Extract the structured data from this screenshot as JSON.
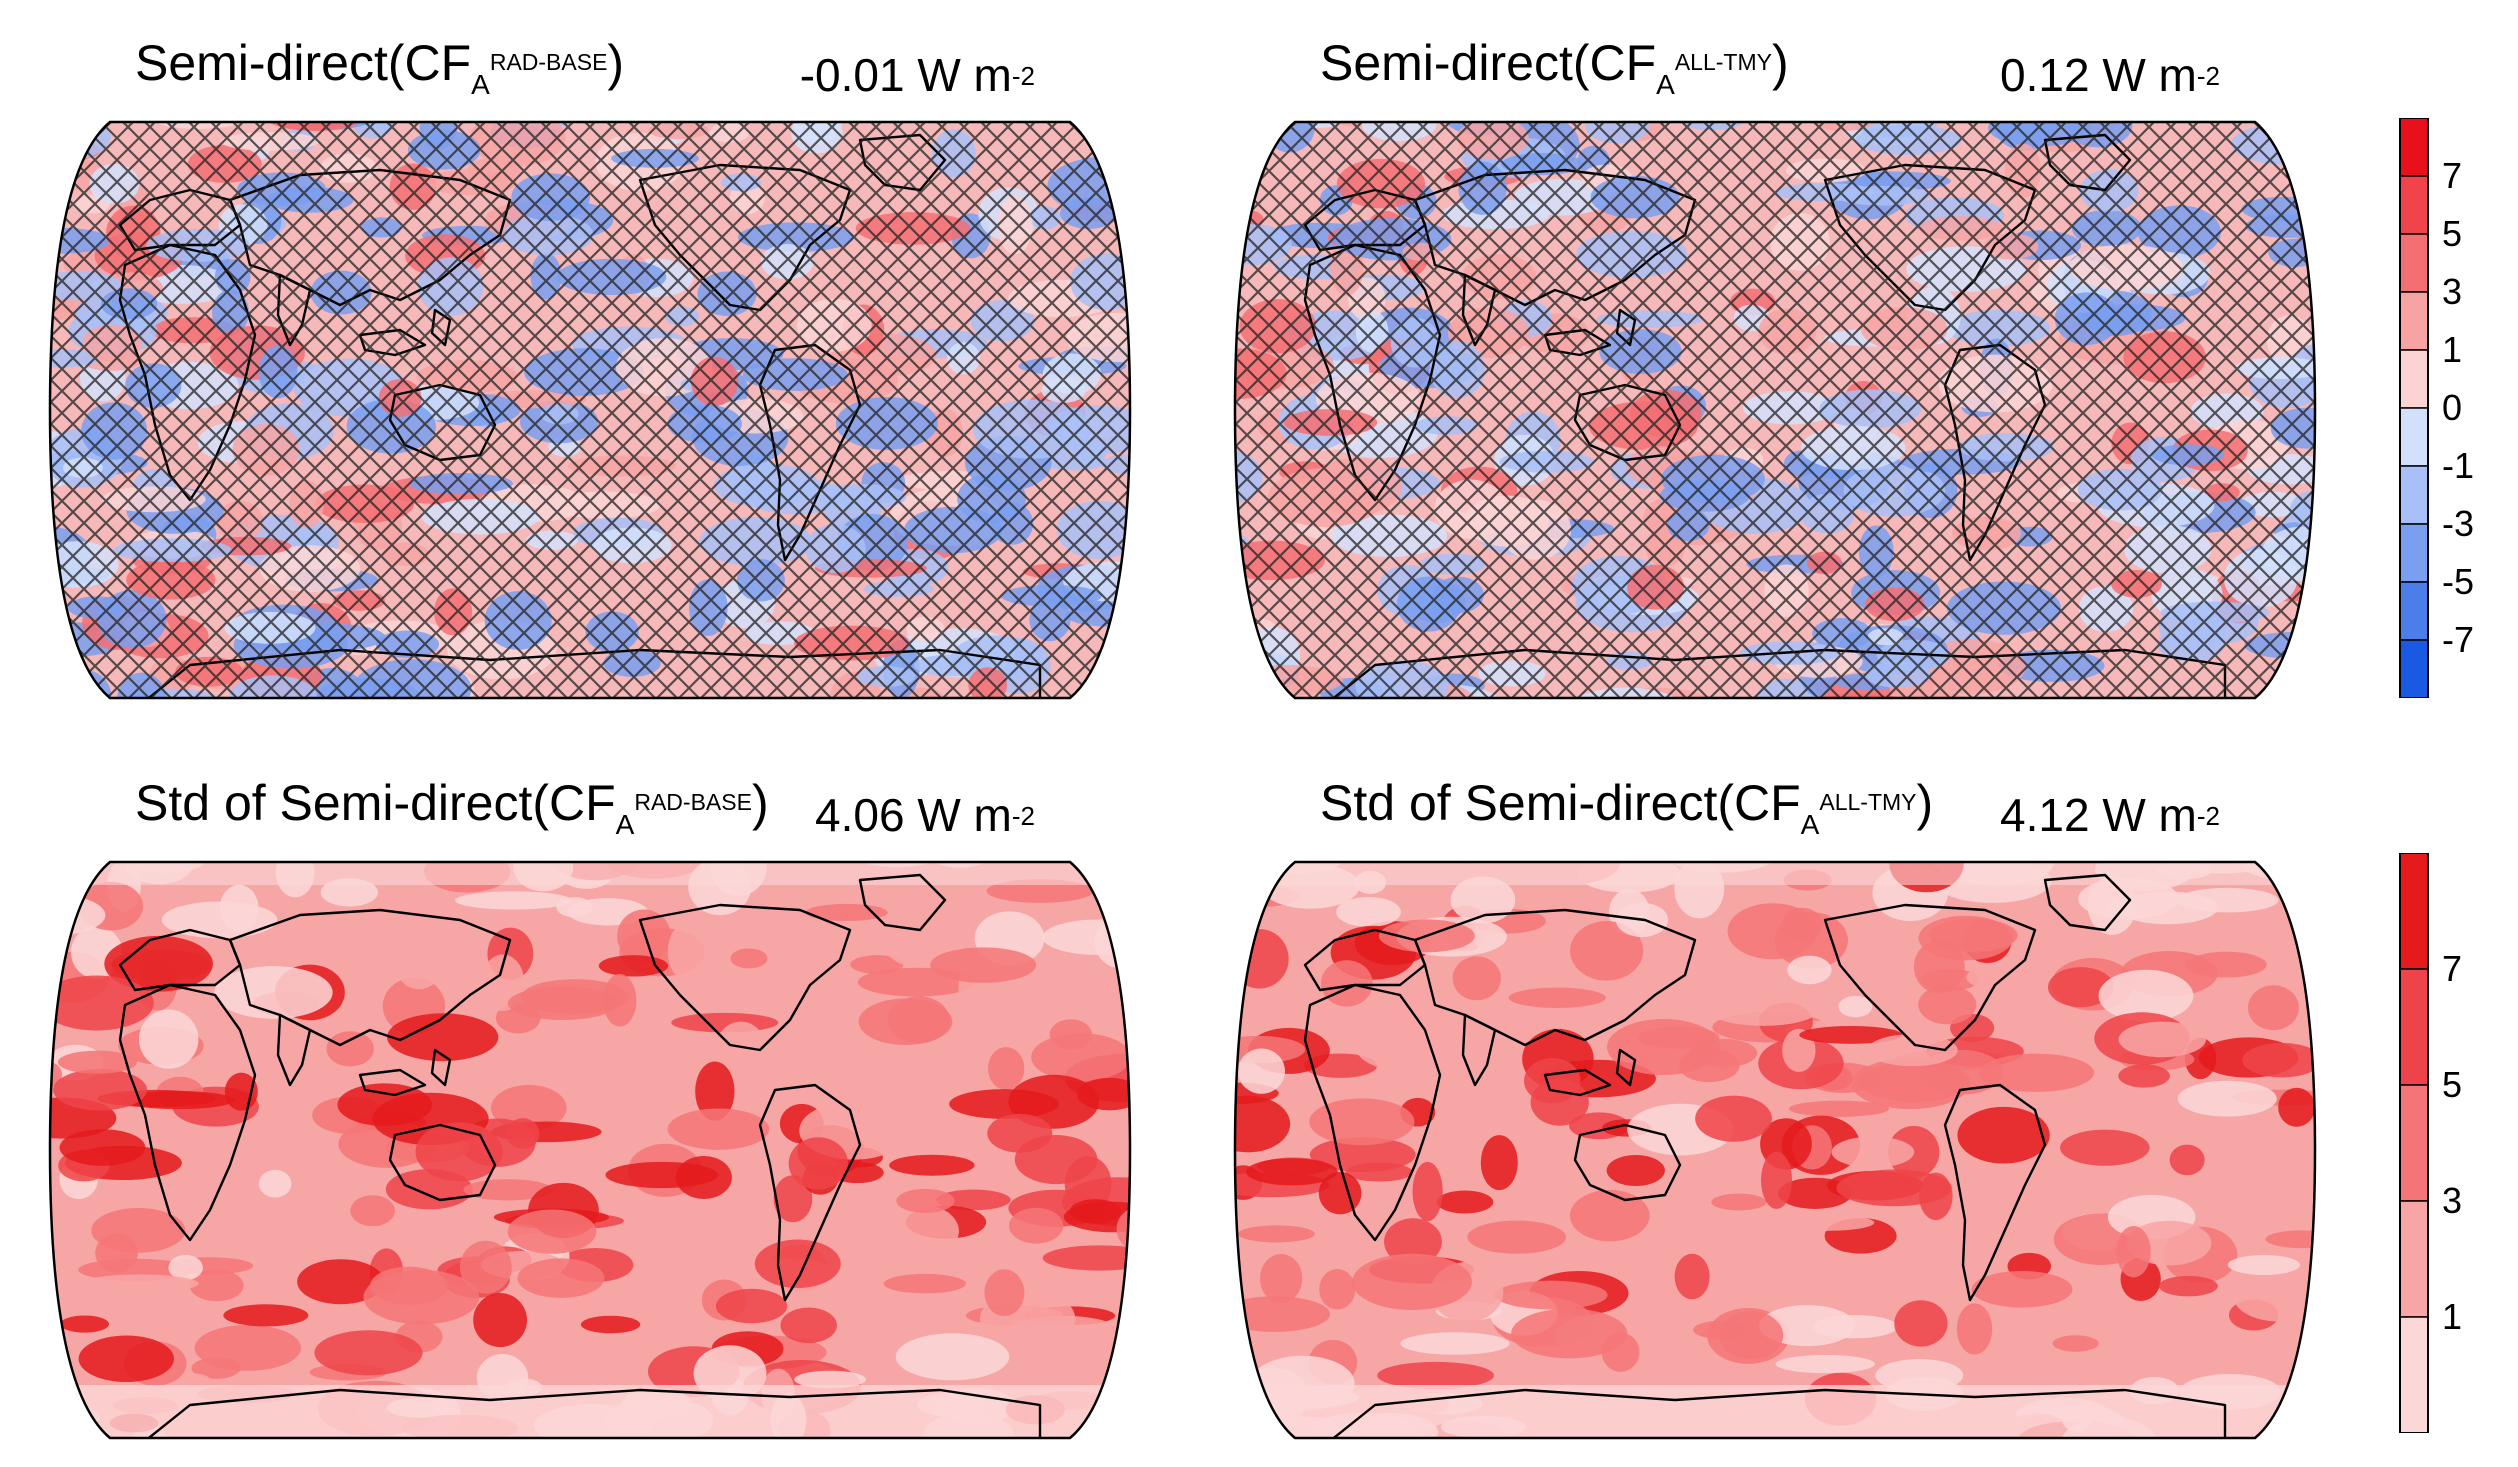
{
  "panels": [
    {
      "id": "tl",
      "title_main": "Semi-direct(CF",
      "title_sub": "A",
      "title_sup": "RAD-BASE",
      "title_close": ")",
      "mean_value": "-0.01 W m",
      "mean_exp": "-2",
      "kind": "diverging"
    },
    {
      "id": "tr",
      "title_main": "Semi-direct(CF",
      "title_sub": "A",
      "title_sup": "ALL-TMY",
      "title_close": ")",
      "mean_value": "0.12 W m",
      "mean_exp": "-2",
      "kind": "diverging"
    },
    {
      "id": "bl",
      "title_main": "Std of Semi-direct(CF",
      "title_sub": "A",
      "title_sup": "RAD-BASE",
      "title_close": ")",
      "mean_value": "4.06 W m",
      "mean_exp": "-2",
      "kind": "sequential"
    },
    {
      "id": "br",
      "title_main": "Std of Semi-direct(CF",
      "title_sub": "A",
      "title_sup": "ALL-TMY",
      "title_close": ")",
      "mean_value": "4.12 W m",
      "mean_exp": "-2",
      "kind": "sequential"
    }
  ],
  "colorbar_top": {
    "ticks": [
      "7",
      "5",
      "3",
      "1",
      "0",
      "-1",
      "-3",
      "-5",
      "-7"
    ],
    "colors": [
      "#e8101a",
      "#f0434a",
      "#f46f72",
      "#f8a3a3",
      "#fcd3d3",
      "#d3e0fc",
      "#a8c0f7",
      "#7a9ff0",
      "#4c7ee9",
      "#1a5ae3"
    ]
  },
  "colorbar_bottom": {
    "ticks": [
      "7",
      "5",
      "3",
      "1"
    ],
    "colors": [
      "#e41a1c",
      "#ee4449",
      "#f47577",
      "#f8a5a5",
      "#fcd7d7"
    ]
  }
}
